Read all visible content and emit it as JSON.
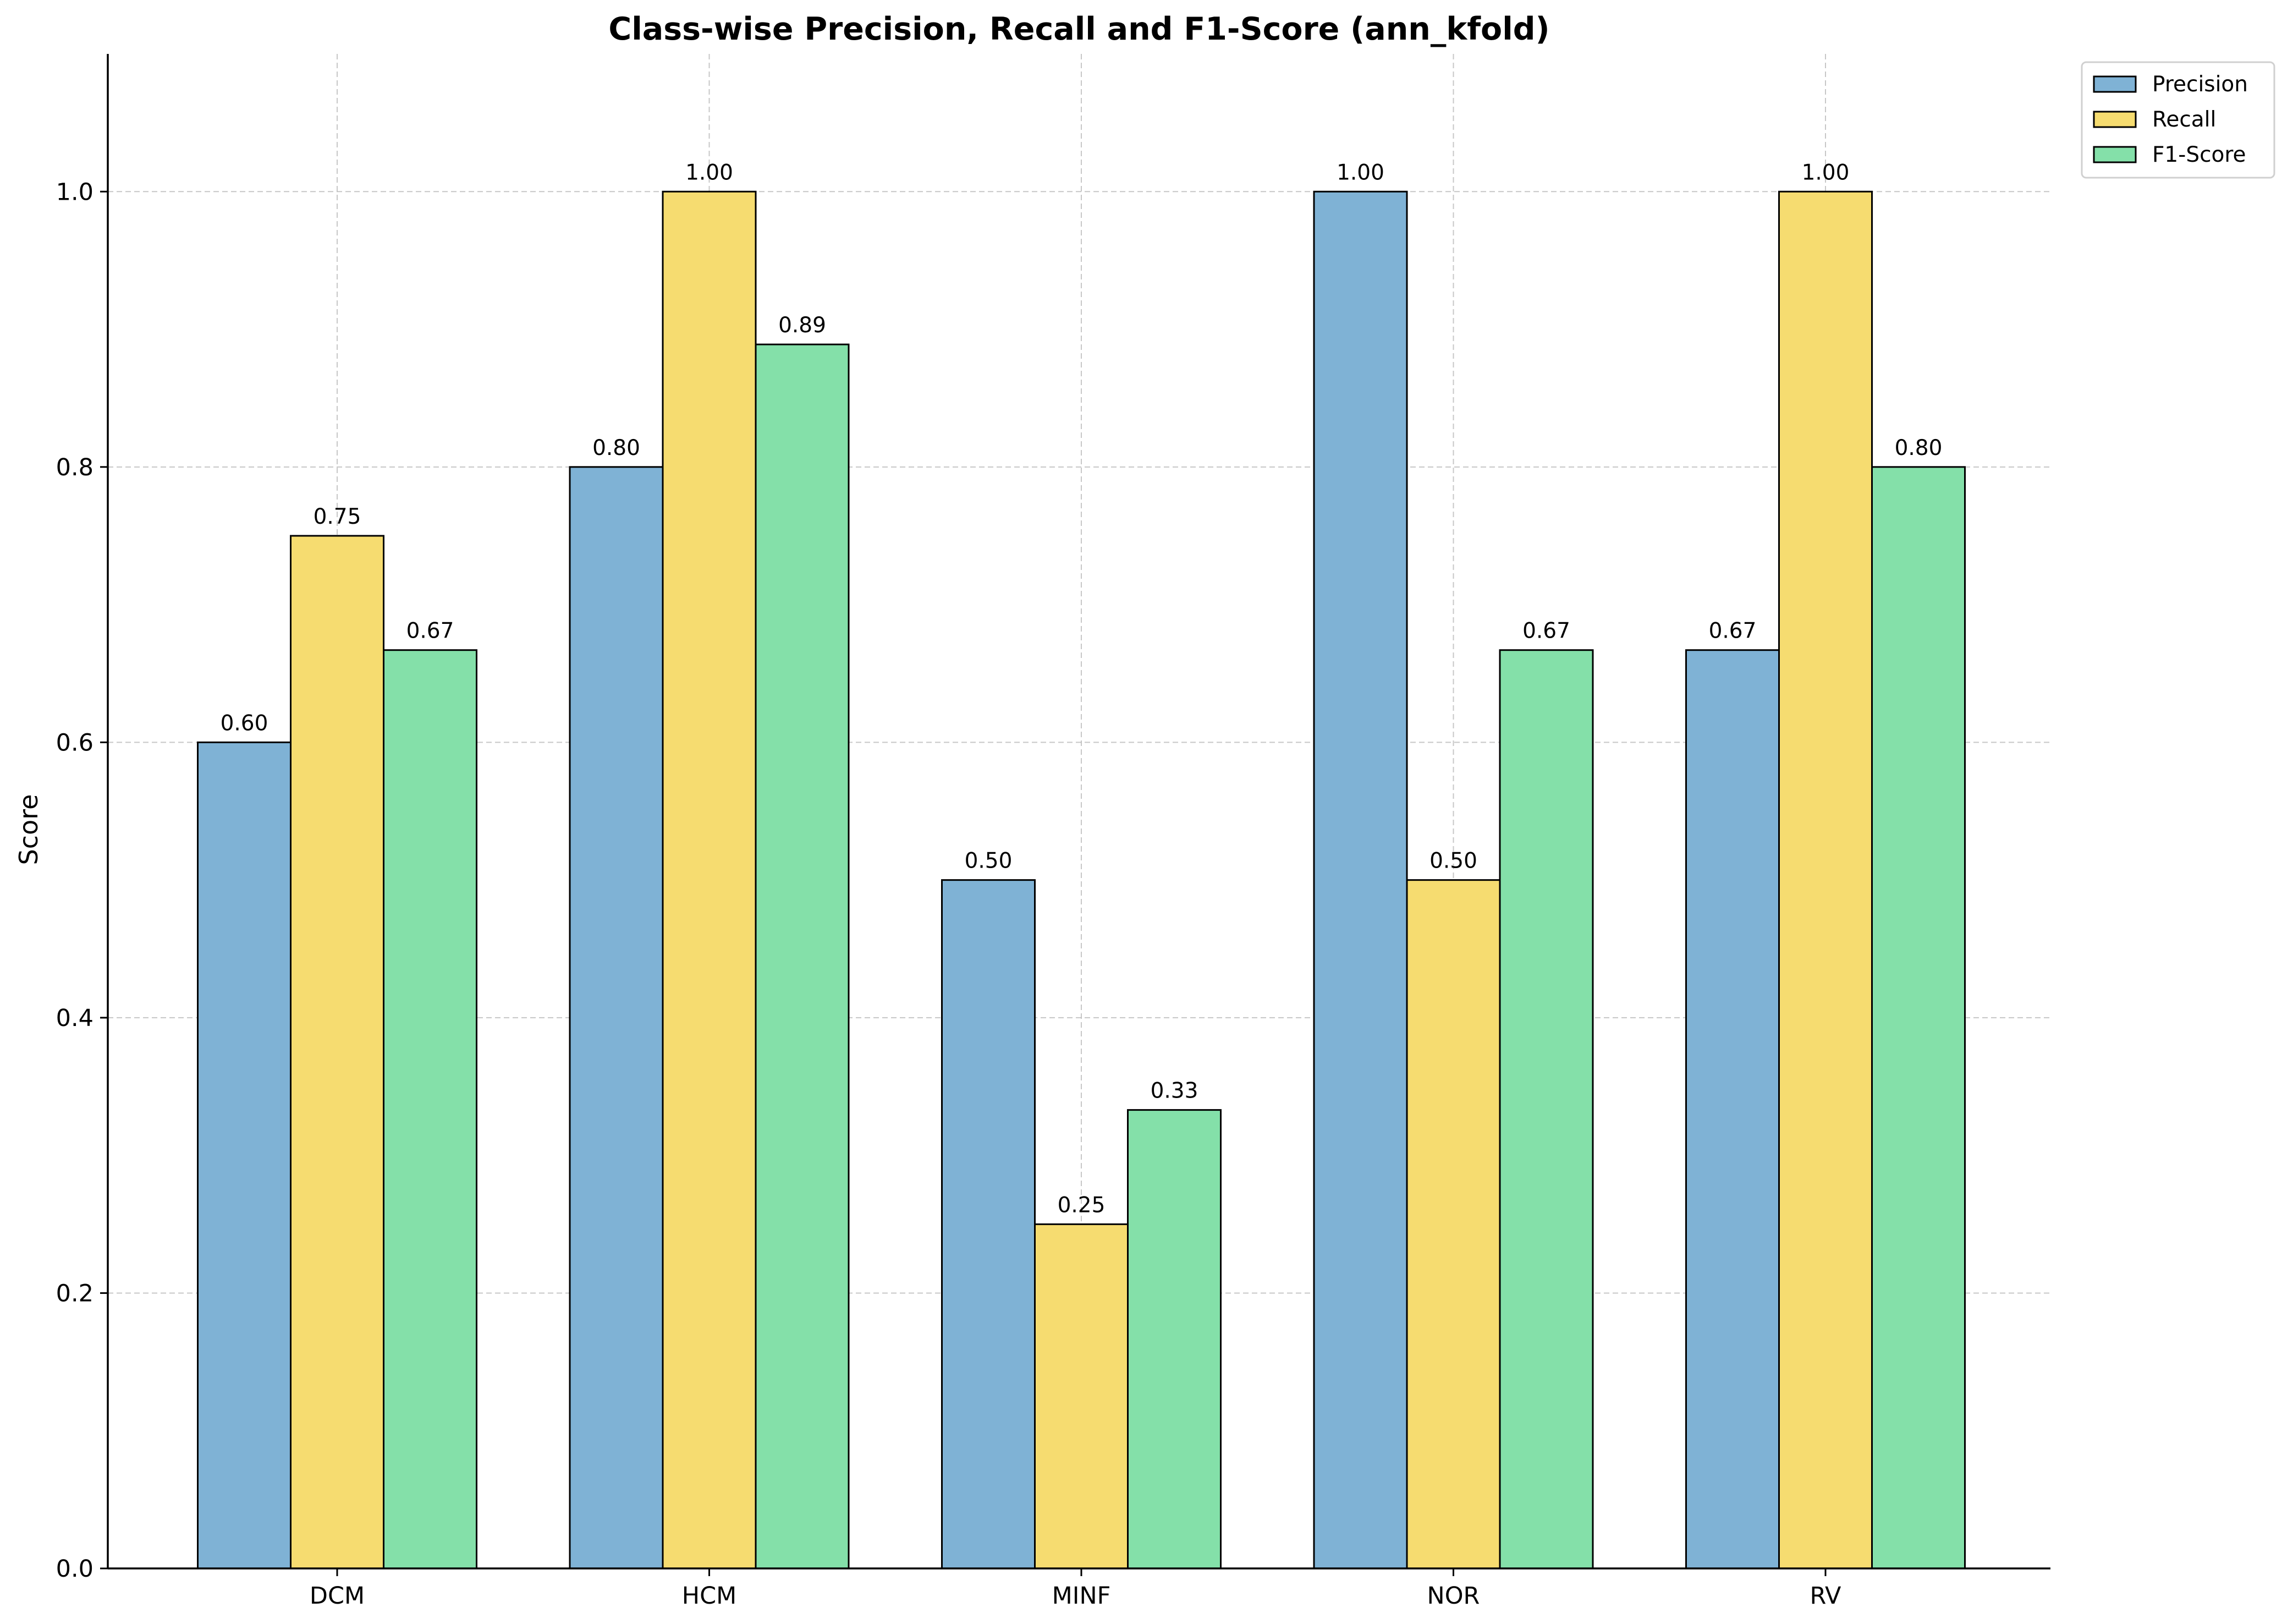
{
  "chart_data": {
    "type": "bar",
    "title": "Class-wise Precision, Recall and F1-Score (ann_kfold)",
    "xlabel": "",
    "ylabel": "Score",
    "categories": [
      "DCM",
      "HCM",
      "MINF",
      "NOR",
      "RV"
    ],
    "series": [
      {
        "name": "Precision",
        "color": "#7fb2d5",
        "values": [
          0.6,
          0.8,
          0.5,
          1.0,
          0.667
        ],
        "labels": [
          "0.60",
          "0.80",
          "0.50",
          "1.00",
          "0.67"
        ]
      },
      {
        "name": "Recall",
        "color": "#f6dc70",
        "values": [
          0.75,
          1.0,
          0.25,
          0.5,
          1.0
        ],
        "labels": [
          "0.75",
          "1.00",
          "0.25",
          "0.50",
          "1.00"
        ]
      },
      {
        "name": "F1-Score",
        "color": "#84e0a9",
        "values": [
          0.667,
          0.889,
          0.333,
          0.667,
          0.8
        ],
        "labels": [
          "0.67",
          "0.89",
          "0.33",
          "0.67",
          "0.80"
        ]
      }
    ],
    "ylim": [
      0,
      1.1
    ],
    "yticks": [
      0.0,
      0.2,
      0.4,
      0.6,
      0.8,
      1.0
    ],
    "ytick_labels": [
      "0.0",
      "0.2",
      "0.4",
      "0.6",
      "0.8",
      "1.0"
    ],
    "grid": true,
    "legend_position": "upper-right-outside"
  }
}
